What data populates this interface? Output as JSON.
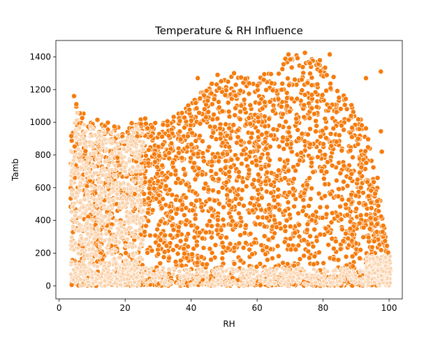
{
  "chart_data": {
    "type": "scatter",
    "title": "Temperature & RH Influence",
    "xlabel": "RH",
    "ylabel": "Tamb",
    "xlim": [
      -1,
      104
    ],
    "ylim": [
      -80,
      1500
    ],
    "xticks": [
      0,
      20,
      40,
      60,
      80,
      100
    ],
    "yticks": [
      0,
      200,
      400,
      600,
      800,
      1000,
      1200,
      1400
    ],
    "grid": false,
    "legend": "none",
    "colors": {
      "points": "#f57c0e",
      "edge": "#ffffff",
      "low_cluster": "#fbd3ad"
    },
    "envelope_upper": {
      "x": [
        4,
        5,
        8,
        12,
        16,
        20,
        24,
        28,
        32,
        36,
        40,
        44,
        48,
        52,
        56,
        60,
        64,
        68,
        72,
        76,
        80,
        84,
        88,
        92,
        96,
        100
      ],
      "y": [
        950,
        1130,
        1040,
        1020,
        990,
        960,
        1050,
        1000,
        1000,
        1050,
        1120,
        1230,
        1260,
        1280,
        1290,
        1270,
        1320,
        1390,
        1410,
        1400,
        1380,
        1260,
        1120,
        1050,
        700,
        160
      ]
    },
    "outliers": [
      {
        "x": 4.5,
        "y": 1160
      },
      {
        "x": 5.2,
        "y": 1110
      },
      {
        "x": 42.0,
        "y": 1270
      },
      {
        "x": 48.0,
        "y": 1290
      },
      {
        "x": 53.0,
        "y": 1300
      },
      {
        "x": 62.0,
        "y": 1260
      },
      {
        "x": 69.5,
        "y": 1415
      },
      {
        "x": 74.5,
        "y": 1425
      },
      {
        "x": 82.0,
        "y": 1415
      },
      {
        "x": 93.0,
        "y": 1270
      },
      {
        "x": 97.5,
        "y": 1310
      },
      {
        "x": 97.5,
        "y": 945
      },
      {
        "x": 97.8,
        "y": 820
      },
      {
        "x": 96.5,
        "y": 660
      },
      {
        "x": 98.0,
        "y": 330
      }
    ]
  }
}
